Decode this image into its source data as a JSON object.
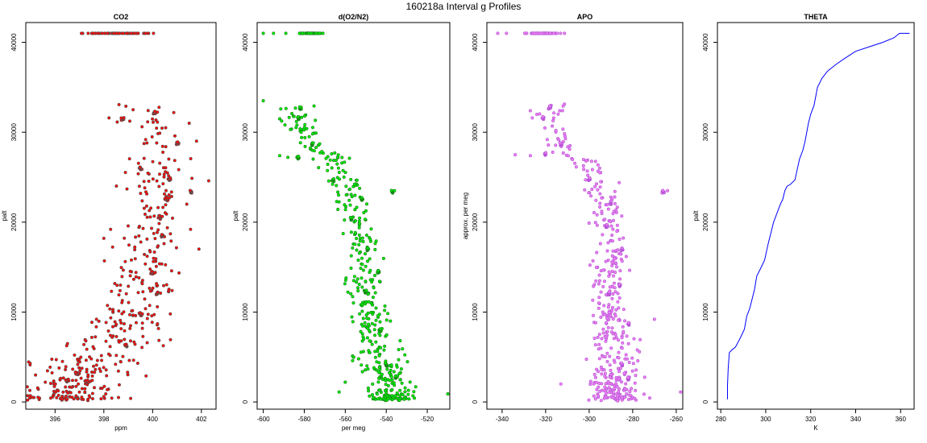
{
  "page": {
    "title": "160218a   Interval g Profiles"
  },
  "chart_data": [
    {
      "type": "scatter",
      "title": "CO2",
      "xlabel": "ppm",
      "ylabel": "palt",
      "xlim": [
        394.8,
        402.6
      ],
      "ylim": [
        -800,
        42200
      ],
      "xticks": [
        396,
        398,
        400,
        402
      ],
      "yticks": [
        0,
        10000,
        20000,
        30000,
        40000
      ],
      "color": "#ff0000",
      "outline_color": "#555555",
      "grid": false,
      "profile": [
        [
          396.3,
          300
        ],
        [
          396.6,
          1500
        ],
        [
          396.9,
          2600
        ],
        [
          397.2,
          3600
        ],
        [
          397.5,
          4600
        ],
        [
          397.8,
          5600
        ],
        [
          398.3,
          6600
        ],
        [
          398.7,
          7600
        ],
        [
          399.1,
          9000
        ],
        [
          399.3,
          11000
        ],
        [
          399.5,
          13000
        ],
        [
          399.6,
          15000
        ],
        [
          399.7,
          17000
        ],
        [
          399.8,
          19000
        ],
        [
          400.0,
          21000
        ],
        [
          400.2,
          23000
        ],
        [
          400.3,
          25000
        ],
        [
          400.3,
          27000
        ],
        [
          400.2,
          29000
        ],
        [
          400.0,
          31000
        ],
        [
          399.8,
          33200
        ]
      ],
      "top_band": {
        "x_range": [
          396.3,
          400.6
        ],
        "y": 41000
      },
      "spread": 1.3,
      "scatter_points": [
        [
          395.2,
          3000
        ],
        [
          395.6,
          2200
        ],
        [
          401.5,
          31000
        ],
        [
          401.8,
          29000
        ],
        [
          402.3,
          24600
        ],
        [
          401.4,
          22000
        ],
        [
          401.9,
          17000
        ],
        [
          398.0,
          18200
        ],
        [
          397.7,
          9200
        ],
        [
          400.8,
          12400
        ],
        [
          399.1,
          400
        ],
        [
          398.6,
          500
        ],
        [
          398.0,
          600
        ],
        [
          397.4,
          700
        ]
      ],
      "clusters": [
        [
          396.9,
          3200
        ],
        [
          397.3,
          2300
        ],
        [
          396.5,
          2400
        ],
        [
          398.9,
          6300
        ],
        [
          399.5,
          9800
        ],
        [
          400.2,
          12100
        ],
        [
          400.0,
          14400
        ],
        [
          400.4,
          18500
        ],
        [
          400.3,
          20600
        ],
        [
          400.6,
          22600
        ],
        [
          400.7,
          24800
        ],
        [
          399.5,
          26000
        ],
        [
          401.0,
          28800
        ],
        [
          401.6,
          23400
        ],
        [
          398.8,
          31500
        ],
        [
          400.1,
          32200
        ]
      ]
    },
    {
      "type": "scatter",
      "title": "d(O2/N2)",
      "xlabel": "per meg",
      "ylabel": "palt",
      "xlim": [
        -603,
        -509
      ],
      "ylim": [
        -800,
        42200
      ],
      "xticks": [
        -600,
        -580,
        -560,
        -540,
        -520
      ],
      "yticks": [
        0,
        10000,
        20000,
        30000,
        40000
      ],
      "color": "#00ee00",
      "outline_color": "#1a7a1a",
      "grid": false,
      "profile": [
        [
          -537,
          300
        ],
        [
          -538,
          1500
        ],
        [
          -540,
          2600
        ],
        [
          -541,
          3600
        ],
        [
          -542,
          4600
        ],
        [
          -543,
          5600
        ],
        [
          -544,
          6600
        ],
        [
          -545,
          7600
        ],
        [
          -547,
          9000
        ],
        [
          -549,
          11000
        ],
        [
          -550,
          13000
        ],
        [
          -551,
          15000
        ],
        [
          -551,
          17000
        ],
        [
          -553,
          19000
        ],
        [
          -554,
          21000
        ],
        [
          -558,
          23000
        ],
        [
          -561,
          25000
        ],
        [
          -566,
          27000
        ],
        [
          -576,
          28600
        ],
        [
          -582,
          30500
        ],
        [
          -584,
          33200
        ]
      ],
      "top_band": {
        "x_range": [
          -584,
          -570
        ],
        "y": 41000
      },
      "spread": 7,
      "scatter_points": [
        [
          -600,
          33500
        ],
        [
          -588,
          27200
        ],
        [
          -592,
          27400
        ],
        [
          -536,
          23500
        ],
        [
          -510,
          900
        ],
        [
          -563,
          1100
        ],
        [
          -548,
          5500
        ],
        [
          -560,
          2200
        ],
        [
          -538,
          9000
        ],
        [
          -595,
          41000
        ],
        [
          -600,
          41000
        ],
        [
          -589,
          41000
        ]
      ],
      "clusters": [
        [
          -537,
          23400
        ],
        [
          -583,
          27200
        ],
        [
          -576,
          28700
        ],
        [
          -566,
          24700
        ],
        [
          -552,
          22600
        ],
        [
          -544,
          14500
        ],
        [
          -550,
          12300
        ],
        [
          -549,
          17000
        ],
        [
          -543,
          8000
        ],
        [
          -540,
          4200
        ],
        [
          -535,
          2800
        ],
        [
          -557,
          20400
        ],
        [
          -583,
          31600
        ],
        [
          -582,
          32700
        ]
      ]
    },
    {
      "type": "scatter",
      "title": "APO",
      "xlabel": "",
      "ylabel": "approx. per meg",
      "xlim": [
        -347,
        -257
      ],
      "ylim": [
        -800,
        42200
      ],
      "xticks": [
        -340,
        -320,
        -300,
        -280,
        -260
      ],
      "yticks": [
        0,
        10000,
        20000,
        30000,
        40000
      ],
      "color": "#ee82ee",
      "outline_color": "#b050d8",
      "grid": false,
      "profile": [
        [
          -287,
          300
        ],
        [
          -288,
          1500
        ],
        [
          -288,
          2600
        ],
        [
          -288,
          3600
        ],
        [
          -288,
          4600
        ],
        [
          -289,
          5600
        ],
        [
          -289,
          6600
        ],
        [
          -289,
          7600
        ],
        [
          -290,
          9000
        ],
        [
          -291,
          11000
        ],
        [
          -291,
          13000
        ],
        [
          -290,
          15000
        ],
        [
          -289,
          17000
        ],
        [
          -290,
          19000
        ],
        [
          -290,
          21000
        ],
        [
          -291,
          23000
        ],
        [
          -298,
          25000
        ],
        [
          -305,
          27000
        ],
        [
          -312,
          28600
        ],
        [
          -318,
          30500
        ],
        [
          -321,
          33200
        ]
      ],
      "top_band": {
        "x_range": [
          -334,
          -311
        ],
        "y": 41000
      },
      "spread": 7,
      "scatter_points": [
        [
          -334,
          27500
        ],
        [
          -327,
          27400
        ],
        [
          -264,
          23500
        ],
        [
          -258,
          1100
        ],
        [
          -313,
          2000
        ],
        [
          -297,
          8800
        ],
        [
          -342,
          41000
        ],
        [
          -338,
          41000
        ],
        [
          -270,
          9200
        ]
      ],
      "clusters": [
        [
          -266,
          23400
        ],
        [
          -320,
          27600
        ],
        [
          -313,
          28700
        ],
        [
          -300,
          24800
        ],
        [
          -290,
          22200
        ],
        [
          -286,
          13000
        ],
        [
          -291,
          12100
        ],
        [
          -285,
          17000
        ],
        [
          -282,
          8700
        ],
        [
          -285,
          4200
        ],
        [
          -282,
          2600
        ],
        [
          -292,
          19600
        ],
        [
          -321,
          31600
        ],
        [
          -318,
          32800
        ]
      ]
    },
    {
      "type": "line",
      "title": "THETA",
      "xlabel": "K",
      "ylabel": "palt",
      "xlim": [
        278.5,
        366
      ],
      "ylim": [
        -800,
        42200
      ],
      "xticks": [
        280,
        300,
        320,
        340,
        360
      ],
      "yticks": [
        0,
        10000,
        20000,
        30000,
        40000
      ],
      "color": "#0000ff",
      "grid": false,
      "series": [
        {
          "x": [
            283.0,
            283.0,
            283.3,
            283.8,
            285.0,
            286.5,
            288.0,
            289.0,
            290.5,
            291.5,
            293.0,
            295.0,
            296.0,
            298.0,
            299.5,
            301.0,
            302.5,
            303.5,
            305.0,
            306.5,
            307.5,
            308.5,
            309.5,
            311.0,
            313.0,
            315.0,
            316.5,
            317.5,
            319.0,
            320.0,
            321.5,
            323.0,
            325.0,
            327.5,
            331.0,
            335.0,
            340.0,
            346.0,
            352.0,
            357.0,
            359.5,
            360.5,
            364.0
          ],
          "y": [
            300,
            1800,
            3800,
            5500,
            5800,
            6100,
            6800,
            7300,
            8100,
            9500,
            10500,
            12500,
            14000,
            15000,
            15800,
            17500,
            19000,
            20000,
            21000,
            22000,
            22500,
            23500,
            24000,
            24200,
            24700,
            27000,
            28000,
            29000,
            31000,
            32000,
            33000,
            35000,
            36000,
            36800,
            37500,
            38200,
            39000,
            39500,
            40000,
            40500,
            41000,
            41000,
            41000
          ]
        }
      ]
    }
  ]
}
